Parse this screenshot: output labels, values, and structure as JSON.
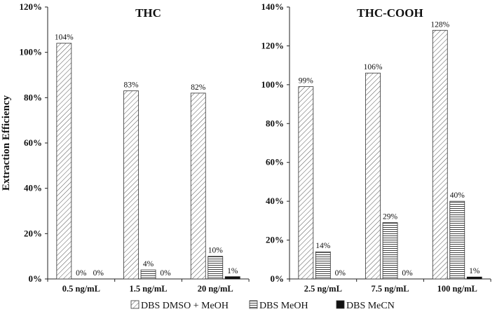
{
  "legend": [
    {
      "label": "DBS DMSO + MeOH",
      "pattern": "diag"
    },
    {
      "label": "DBS MeOH",
      "pattern": "horiz"
    },
    {
      "label": "DBS MeCN",
      "pattern": "solid"
    }
  ],
  "chart_data": [
    {
      "type": "bar",
      "title": "THC",
      "ylabel": "Extraction Efficiency",
      "xlabel": "",
      "ylim": [
        0,
        120
      ],
      "yticks": [
        0,
        20,
        40,
        60,
        80,
        100,
        120
      ],
      "ytick_format": "%",
      "grid": false,
      "categories": [
        "0.5 ng/mL",
        "1.5 ng/mL",
        "20 ng/mL"
      ],
      "series": [
        {
          "name": "DBS DMSO + MeOH",
          "values": [
            104,
            83,
            82
          ],
          "labels": [
            "104%",
            "83%",
            "82%"
          ],
          "pattern": "diag"
        },
        {
          "name": "DBS MeOH",
          "values": [
            0,
            4,
            10
          ],
          "labels": [
            "0%",
            "4%",
            "10%"
          ],
          "pattern": "horiz"
        },
        {
          "name": "DBS MeCN",
          "values": [
            0,
            0,
            1
          ],
          "labels": [
            "0%",
            "0%",
            "1%"
          ],
          "pattern": "solid"
        }
      ]
    },
    {
      "type": "bar",
      "title": "THC-COOH",
      "ylabel": "",
      "xlabel": "",
      "ylim": [
        0,
        140
      ],
      "yticks": [
        0,
        20,
        40,
        60,
        80,
        100,
        120,
        140
      ],
      "ytick_format": "%",
      "grid": false,
      "categories": [
        "2.5 ng/mL",
        "7.5 ng/mL",
        "100 ng/mL"
      ],
      "series": [
        {
          "name": "DBS DMSO + MeOH",
          "values": [
            99,
            106,
            128
          ],
          "labels": [
            "99%",
            "106%",
            "128%"
          ],
          "pattern": "diag"
        },
        {
          "name": "DBS MeOH",
          "values": [
            14,
            29,
            40
          ],
          "labels": [
            "14%",
            "29%",
            "40%"
          ],
          "pattern": "horiz"
        },
        {
          "name": "DBS MeCN",
          "values": [
            0,
            0,
            1
          ],
          "labels": [
            "0%",
            "0%",
            "1%"
          ],
          "pattern": "solid"
        }
      ]
    }
  ]
}
